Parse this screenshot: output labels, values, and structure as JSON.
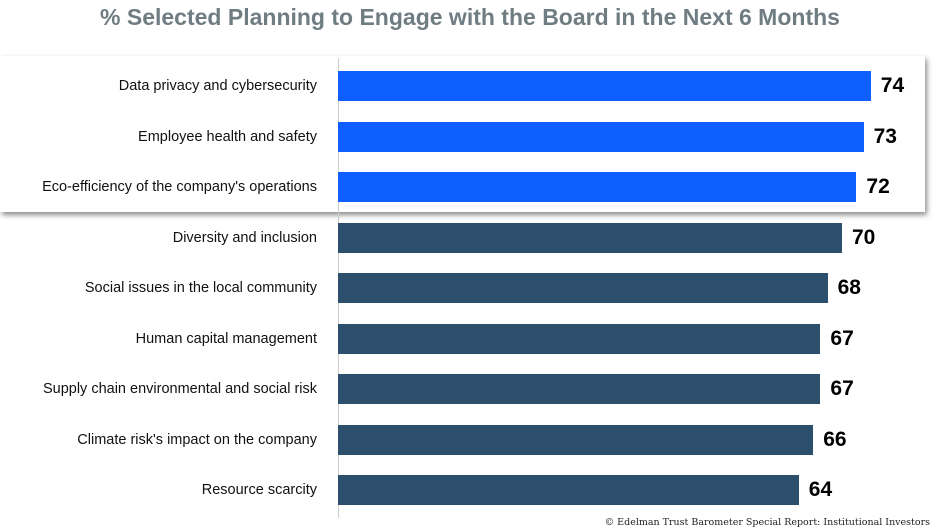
{
  "chart_data": {
    "type": "bar",
    "orientation": "horizontal",
    "title": "% Selected Planning to Engage with the Board in the Next 6 Months",
    "categories": [
      "Data privacy and cybersecurity",
      "Employee health and safety",
      "Eco-efficiency of the company's operations",
      "Diversity and inclusion",
      "Social issues in the local community",
      "Human capital management",
      "Supply chain environmental and social risk",
      "Climate risk's impact on the company",
      "Resource scarcity"
    ],
    "values": [
      74,
      73,
      72,
      70,
      68,
      67,
      67,
      66,
      64
    ],
    "value_labels": [
      "74",
      "73",
      "72",
      "70",
      "68",
      "67",
      "67",
      "66",
      "64"
    ],
    "highlighted": [
      true,
      true,
      true,
      false,
      false,
      false,
      false,
      false,
      false
    ],
    "xlim": [
      0,
      74
    ],
    "grid": false,
    "colors": {
      "highlight": "#0f5fff",
      "default": "#2c4f6e"
    }
  },
  "footer": "© Edelman Trust Barometer Special Report: Institutional Investors"
}
